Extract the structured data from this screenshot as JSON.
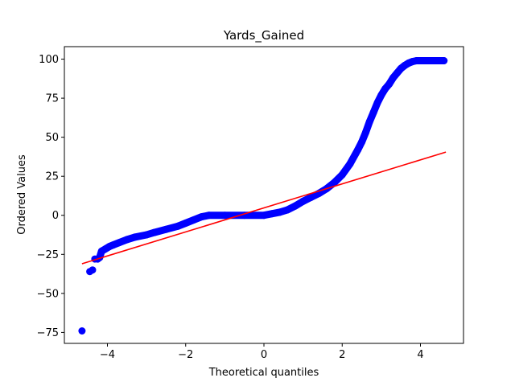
{
  "chart_data": {
    "type": "scatter",
    "title": "Yards_Gained",
    "xlabel": "Theoretical quantiles",
    "ylabel": "Ordered Values",
    "xlim": [
      -5.1,
      5.1
    ],
    "ylim": [
      -82,
      108
    ],
    "x_ticks": [
      -4,
      -2,
      0,
      2,
      4
    ],
    "y_ticks": [
      -75,
      -50,
      -25,
      0,
      25,
      50,
      75,
      100
    ],
    "grid": false,
    "legend": "none",
    "series": [
      {
        "kind": "points",
        "color": "#0000ff",
        "points": [
          [
            -4.65,
            -74
          ],
          [
            -4.45,
            -36
          ],
          [
            -4.38,
            -35
          ],
          [
            -4.32,
            -28
          ],
          [
            -4.25,
            -28
          ],
          [
            -4.2,
            -27
          ],
          [
            -4.15,
            -23
          ],
          [
            -4.05,
            -21.5
          ],
          [
            -3.95,
            -20
          ],
          [
            -3.85,
            -19
          ],
          [
            -3.7,
            -17.5
          ],
          [
            -3.5,
            -15.5
          ],
          [
            -3.3,
            -14
          ],
          [
            -3.0,
            -12.5
          ],
          [
            -2.8,
            -11
          ],
          [
            -2.5,
            -9
          ],
          [
            -2.2,
            -7
          ],
          [
            -2.0,
            -5
          ],
          [
            -1.8,
            -3
          ],
          [
            -1.6,
            -1
          ],
          [
            -1.4,
            0
          ],
          [
            -1.0,
            0
          ],
          [
            -0.5,
            0
          ],
          [
            0.0,
            0
          ],
          [
            0.2,
            1
          ],
          [
            0.4,
            2
          ],
          [
            0.6,
            3.5
          ],
          [
            0.8,
            6
          ],
          [
            1.0,
            9
          ],
          [
            1.2,
            11.5
          ],
          [
            1.4,
            14
          ],
          [
            1.6,
            17
          ],
          [
            1.8,
            21
          ],
          [
            2.0,
            26
          ],
          [
            2.2,
            33
          ],
          [
            2.4,
            42
          ],
          [
            2.5,
            47
          ],
          [
            2.6,
            53
          ],
          [
            2.7,
            60
          ],
          [
            2.8,
            66
          ],
          [
            2.9,
            72
          ],
          [
            3.0,
            77
          ],
          [
            3.1,
            81
          ],
          [
            3.2,
            84
          ],
          [
            3.3,
            88
          ],
          [
            3.4,
            91
          ],
          [
            3.5,
            94
          ],
          [
            3.6,
            96
          ],
          [
            3.7,
            97.5
          ],
          [
            3.8,
            98.5
          ],
          [
            3.9,
            99
          ],
          [
            4.0,
            99
          ],
          [
            4.1,
            99
          ],
          [
            4.25,
            99
          ],
          [
            4.4,
            99
          ],
          [
            4.6,
            99
          ]
        ]
      },
      {
        "kind": "fit-line",
        "color": "#ff0000",
        "x": [
          -4.65,
          4.65
        ],
        "y": [
          -31,
          40.5
        ]
      }
    ]
  }
}
